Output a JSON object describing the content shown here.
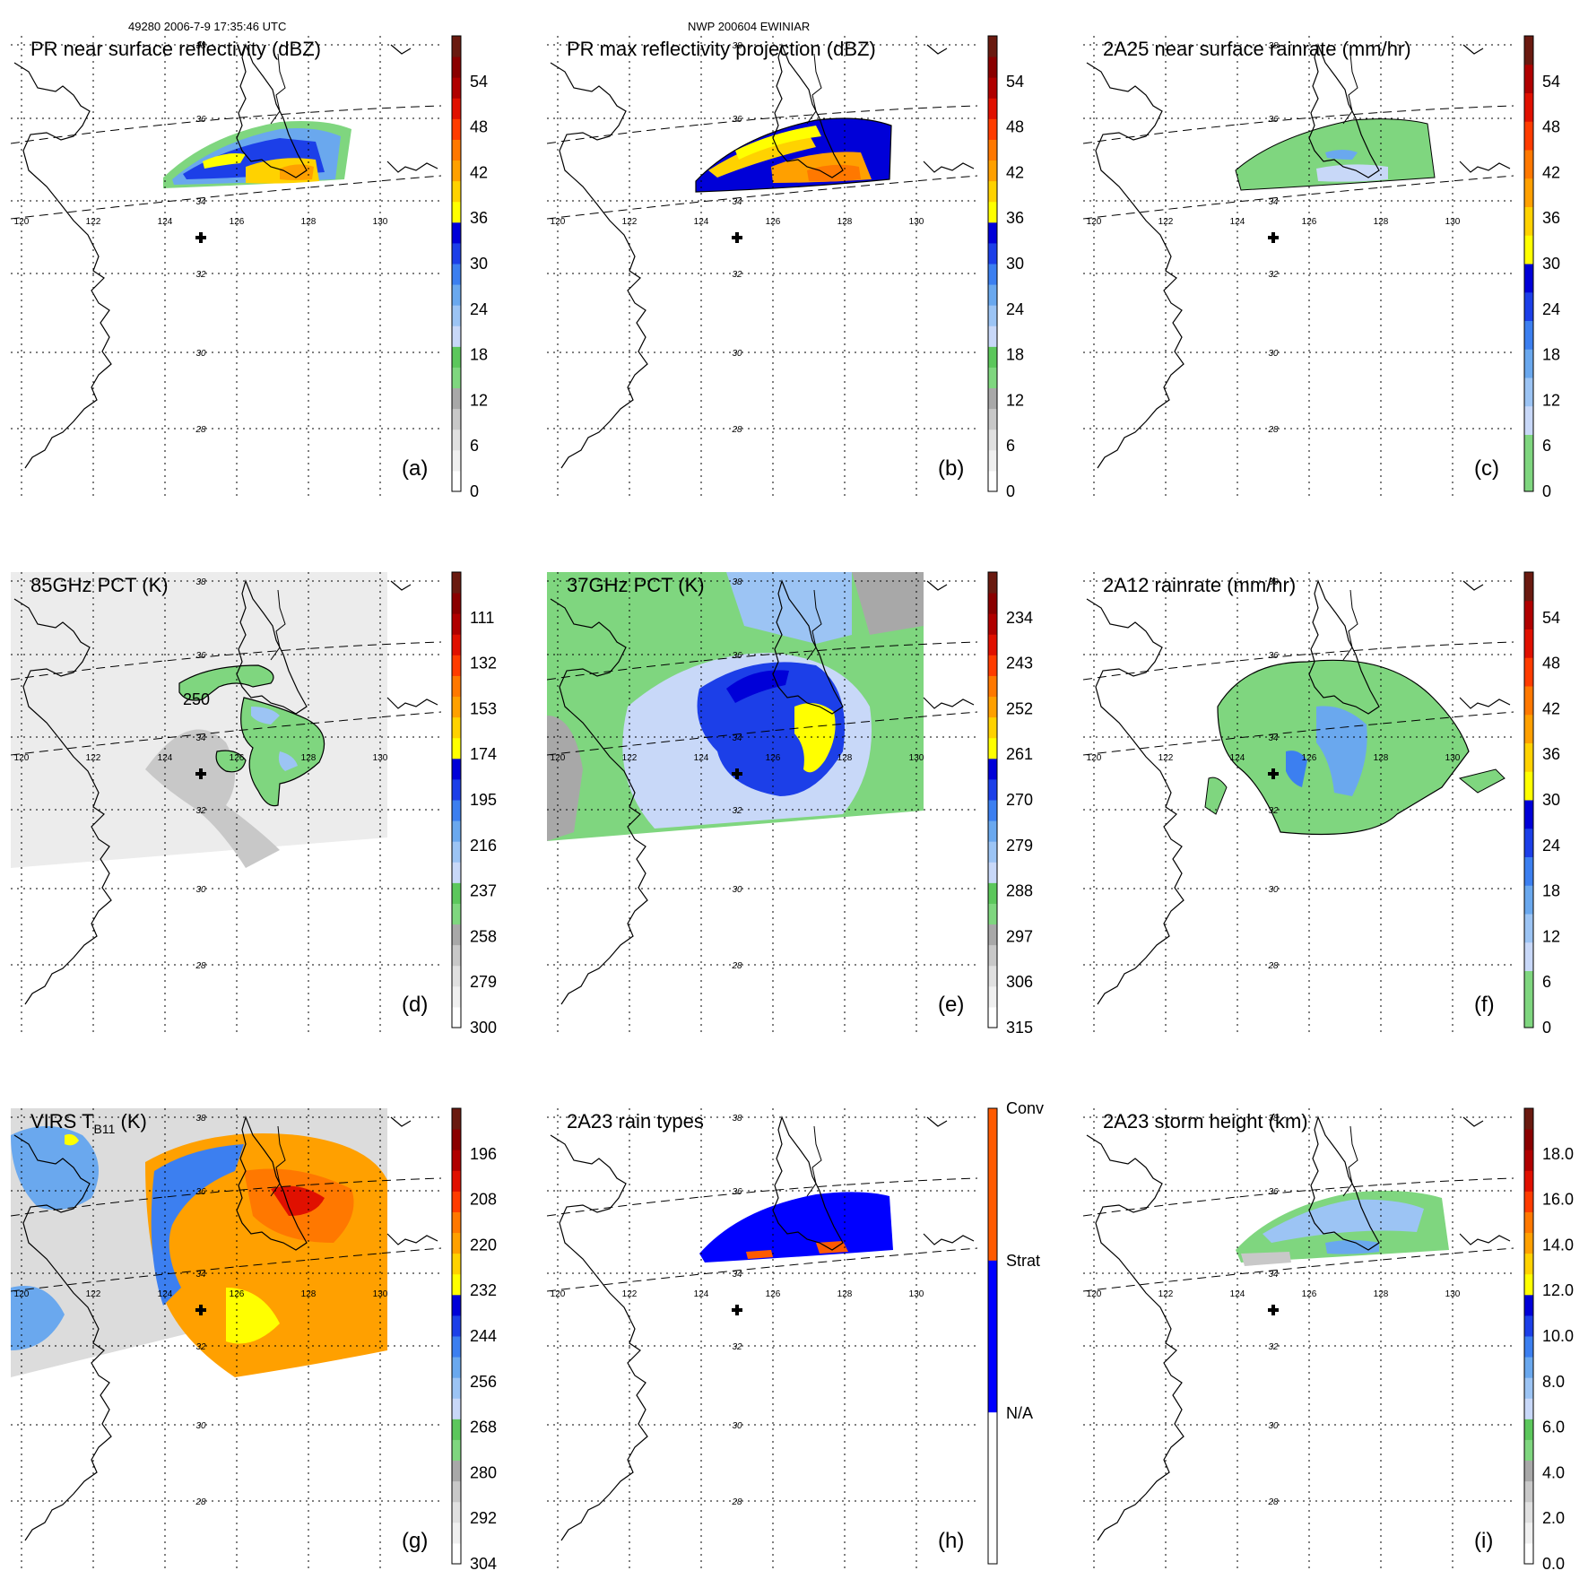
{
  "header": {
    "left": "49280 2006-7-9 17:35:46 UTC",
    "center": "NWP 200604 EWINIAR"
  },
  "map": {
    "lon_labels": [
      "120",
      "122",
      "124",
      "126",
      "128",
      "130"
    ],
    "lat_labels": [
      "38",
      "36",
      "34",
      "32",
      "30",
      "28"
    ],
    "storm_center_marker": "cross-icon"
  },
  "panels": [
    {
      "id": "a",
      "title": "PR near surface reflectivity (dBZ)",
      "letter": "(a)",
      "colorbar_ticks": [
        "0",
        "6",
        "12",
        "18",
        "24",
        "30",
        "36",
        "42",
        "48",
        "54"
      ],
      "colorbar_colors": [
        "#ffffff",
        "#f0f0f0",
        "#e0e0e0",
        "#c8c8c8",
        "#a8a8a8",
        "#7fd67f",
        "#5cc75c",
        "#c8d8f8",
        "#9cc4f4",
        "#6aa8ee",
        "#3c7ff0",
        "#1c3fe8",
        "#0000d8",
        "#ffff00",
        "#ffd200",
        "#ffa000",
        "#ff7800",
        "#ff3c00",
        "#e01000",
        "#b00000",
        "#8a0000",
        "#6a1a10"
      ],
      "echo": "pr"
    },
    {
      "id": "b",
      "title": "PR max reflectivity projection (dBZ)",
      "letter": "(b)",
      "colorbar_ticks": [
        "0",
        "6",
        "12",
        "18",
        "24",
        "30",
        "36",
        "42",
        "48",
        "54"
      ],
      "colorbar_colors": [
        "#ffffff",
        "#f0f0f0",
        "#e0e0e0",
        "#c8c8c8",
        "#a8a8a8",
        "#7fd67f",
        "#5cc75c",
        "#c8d8f8",
        "#9cc4f4",
        "#6aa8ee",
        "#3c7ff0",
        "#1c3fe8",
        "#0000d8",
        "#ffff00",
        "#ffd200",
        "#ffa000",
        "#ff7800",
        "#ff3c00",
        "#e01000",
        "#b00000",
        "#8a0000",
        "#6a1a10"
      ],
      "echo": "prmax"
    },
    {
      "id": "c",
      "title": "2A25 near surface rainrate (mm/hr)",
      "letter": "(c)",
      "colorbar_ticks": [
        "0",
        "6",
        "12",
        "18",
        "24",
        "30",
        "36",
        "42",
        "48",
        "54"
      ],
      "colorbar_colors": [
        "#7fd67f",
        "#7fd67f",
        "#c8d8f8",
        "#9cc4f4",
        "#6aa8ee",
        "#3c7ff0",
        "#1c3fe8",
        "#0000d8",
        "#ffff00",
        "#ffd200",
        "#ffa000",
        "#ff7800",
        "#ff3c00",
        "#e01000",
        "#b00000",
        "#6a1a10"
      ],
      "echo": "rain25"
    },
    {
      "id": "d",
      "title": "85GHz PCT (K)",
      "letter": "(d)",
      "colorbar_ticks": [
        "300",
        "279",
        "258",
        "237",
        "216",
        "195",
        "174",
        "153",
        "132",
        "111"
      ],
      "colorbar_colors": [
        "#ffffff",
        "#f0f0f0",
        "#e0e0e0",
        "#c8c8c8",
        "#a8a8a8",
        "#7fd67f",
        "#5cc75c",
        "#c8d8f8",
        "#9cc4f4",
        "#6aa8ee",
        "#3c7ff0",
        "#1c3fe8",
        "#0000d8",
        "#ffff00",
        "#ffd200",
        "#ffa000",
        "#ff7800",
        "#ff3c00",
        "#e01000",
        "#b00000",
        "#8a0000",
        "#6a1a10"
      ],
      "contour_label": "250",
      "echo": "pct85"
    },
    {
      "id": "e",
      "title": "37GHz PCT (K)",
      "letter": "(e)",
      "colorbar_ticks": [
        "315",
        "306",
        "297",
        "288",
        "279",
        "270",
        "261",
        "252",
        "243",
        "234"
      ],
      "colorbar_colors": [
        "#ffffff",
        "#f0f0f0",
        "#e0e0e0",
        "#c8c8c8",
        "#a8a8a8",
        "#7fd67f",
        "#5cc75c",
        "#c8d8f8",
        "#9cc4f4",
        "#6aa8ee",
        "#3c7ff0",
        "#1c3fe8",
        "#0000d8",
        "#ffff00",
        "#ffd200",
        "#ffa000",
        "#ff7800",
        "#ff3c00",
        "#e01000",
        "#b00000",
        "#8a0000",
        "#6a1a10"
      ],
      "echo": "pct37"
    },
    {
      "id": "f",
      "title": "2A12 rainrate (mm/hr)",
      "letter": "(f)",
      "colorbar_ticks": [
        "0",
        "6",
        "12",
        "18",
        "24",
        "30",
        "36",
        "42",
        "48",
        "54"
      ],
      "colorbar_colors": [
        "#7fd67f",
        "#7fd67f",
        "#c8d8f8",
        "#9cc4f4",
        "#6aa8ee",
        "#3c7ff0",
        "#1c3fe8",
        "#0000d8",
        "#ffff00",
        "#ffd200",
        "#ffa000",
        "#ff7800",
        "#ff3c00",
        "#e01000",
        "#b00000",
        "#6a1a10"
      ],
      "echo": "rain12"
    },
    {
      "id": "g",
      "title": "VIRS T",
      "title_sub": "B11",
      "title_tail": " (K)",
      "letter": "(g)",
      "colorbar_ticks": [
        "304",
        "292",
        "280",
        "268",
        "256",
        "244",
        "232",
        "220",
        "208",
        "196"
      ],
      "colorbar_colors": [
        "#ffffff",
        "#f0f0f0",
        "#e0e0e0",
        "#c8c8c8",
        "#a8a8a8",
        "#7fd67f",
        "#5cc75c",
        "#c8d8f8",
        "#9cc4f4",
        "#6aa8ee",
        "#3c7ff0",
        "#1c3fe8",
        "#0000d8",
        "#ffff00",
        "#ffd200",
        "#ffa000",
        "#ff7800",
        "#ff3c00",
        "#e01000",
        "#b00000",
        "#8a0000",
        "#6a1a10"
      ],
      "echo": "virs"
    },
    {
      "id": "h",
      "title": "2A23 rain types",
      "letter": "(h)",
      "colorbar_ticks": [
        "N/A",
        "Strat",
        "Conv"
      ],
      "colorbar_colors": [
        "#ffffff",
        "#0000ff",
        "#ff5a00"
      ],
      "echo": "raintype"
    },
    {
      "id": "i",
      "title": "2A23 storm height (km)",
      "letter": "(i)",
      "colorbar_ticks": [
        "0.0",
        "2.0",
        "4.0",
        "6.0",
        "8.0",
        "10.0",
        "12.0",
        "14.0",
        "16.0",
        "18.0"
      ],
      "colorbar_colors": [
        "#ffffff",
        "#f0f0f0",
        "#e0e0e0",
        "#c8c8c8",
        "#a8a8a8",
        "#7fd67f",
        "#5cc75c",
        "#c8d8f8",
        "#9cc4f4",
        "#6aa8ee",
        "#3c7ff0",
        "#1c3fe8",
        "#0000d8",
        "#ffff00",
        "#ffd200",
        "#ffa000",
        "#ff7800",
        "#ff3c00",
        "#e01000",
        "#b00000",
        "#8a0000",
        "#6a1a10"
      ],
      "echo": "height"
    }
  ]
}
